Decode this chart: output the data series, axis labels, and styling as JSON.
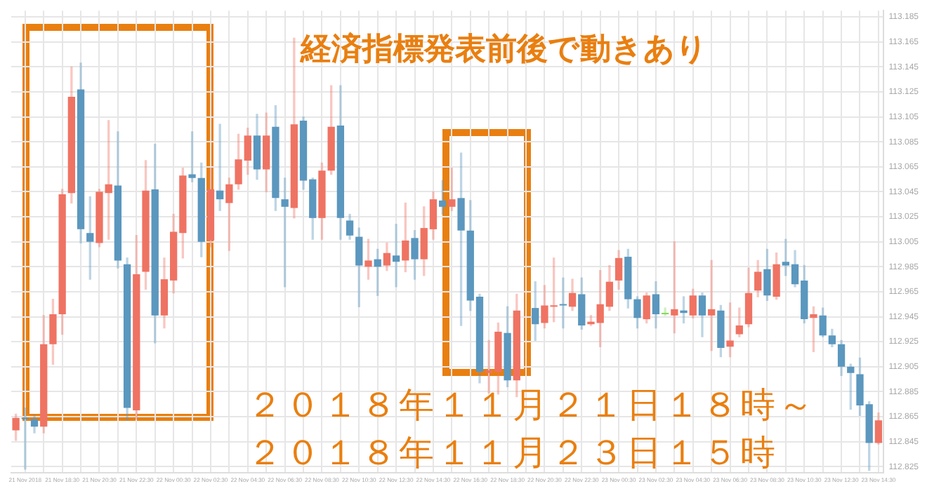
{
  "chart_data": {
    "type": "candlestick",
    "title": "経済指標発表前後で動きあり",
    "annotations": [
      "２０１８年１１月２１日１８時～",
      "２０１８年１１月２３日１５時"
    ],
    "categories": [
      null,
      "21 Nov 2018",
      null,
      null,
      null,
      "21 Nov 18:30",
      null,
      null,
      null,
      "21 Nov 20:30",
      null,
      null,
      null,
      "21 Nov 22:30",
      null,
      null,
      null,
      "22 Nov 00:30",
      null,
      null,
      null,
      "22 Nov 02:30",
      null,
      null,
      null,
      "22 Nov 04:30",
      null,
      null,
      null,
      "22 Nov 06:30",
      null,
      null,
      null,
      "22 Nov 08:30",
      null,
      null,
      null,
      "22 Nov 10:30",
      null,
      null,
      null,
      "22 Nov 12:30",
      null,
      null,
      null,
      "22 Nov 14:30",
      null,
      null,
      null,
      "22 Nov 16:30",
      null,
      null,
      null,
      "22 Nov 18:30",
      null,
      null,
      null,
      "22 Nov 20:30",
      null,
      null,
      null,
      "22 Nov 22:30",
      null,
      null,
      null,
      "23 Nov 00:30",
      null,
      null,
      null,
      "23 Nov 02:30",
      null,
      null,
      null,
      "23 Nov 04:30",
      null,
      null,
      null,
      "23 Nov 06:30",
      null,
      null,
      null,
      "23 Nov 08:30",
      null,
      null,
      null,
      "23 Nov 10:30",
      null,
      null,
      null,
      "23 Nov 12:30",
      null,
      null,
      null,
      "23 Nov 14:30"
    ],
    "ohlc": [
      [
        112.854,
        112.867,
        112.846,
        112.864
      ],
      [
        112.864,
        112.872,
        112.823,
        112.863
      ],
      [
        112.863,
        112.866,
        112.852,
        112.857
      ],
      [
        112.857,
        112.946,
        112.852,
        112.923
      ],
      [
        112.923,
        112.959,
        112.907,
        112.947
      ],
      [
        112.947,
        113.047,
        112.931,
        113.043
      ],
      [
        113.044,
        113.145,
        113.036,
        113.121
      ],
      [
        113.127,
        113.148,
        113.004,
        113.015
      ],
      [
        113.012,
        113.041,
        112.975,
        113.005
      ],
      [
        113.004,
        113.047,
        113.001,
        113.045
      ],
      [
        113.044,
        113.102,
        113.007,
        113.051
      ],
      [
        113.05,
        113.093,
        112.984,
        112.99
      ],
      [
        112.987,
        112.992,
        112.862,
        112.872
      ],
      [
        112.87,
        113.01,
        112.863,
        112.979
      ],
      [
        112.981,
        113.07,
        112.967,
        113.046
      ],
      [
        113.047,
        113.083,
        112.924,
        112.946
      ],
      [
        112.946,
        112.992,
        112.936,
        112.975
      ],
      [
        112.974,
        113.027,
        112.964,
        113.013
      ],
      [
        113.012,
        113.064,
        112.992,
        113.058
      ],
      [
        113.059,
        113.093,
        113.053,
        113.056
      ],
      [
        113.056,
        113.068,
        112.993,
        113.005
      ],
      [
        113.006,
        113.064,
        113.001,
        113.047
      ],
      [
        113.046,
        113.099,
        113.03,
        113.039
      ],
      [
        113.036,
        113.056,
        112.998,
        113.051
      ],
      [
        113.051,
        113.091,
        113.047,
        113.071
      ],
      [
        113.07,
        113.096,
        113.059,
        113.09
      ],
      [
        113.09,
        113.107,
        113.055,
        113.063
      ],
      [
        113.063,
        113.108,
        113.045,
        113.09
      ],
      [
        113.097,
        113.114,
        113.03,
        113.04
      ],
      [
        113.039,
        113.056,
        112.969,
        113.033
      ],
      [
        113.032,
        113.168,
        113.024,
        113.099
      ],
      [
        113.102,
        113.105,
        113.047,
        113.054
      ],
      [
        113.055,
        113.056,
        113.007,
        113.024
      ],
      [
        113.024,
        113.068,
        113.007,
        113.062
      ],
      [
        113.062,
        113.13,
        113.059,
        113.097
      ],
      [
        113.098,
        113.13,
        113.007,
        113.024
      ],
      [
        113.022,
        113.027,
        113.007,
        113.01
      ],
      [
        113.009,
        113.016,
        112.953,
        112.986
      ],
      [
        112.985,
        113.007,
        112.975,
        112.99
      ],
      [
        112.991,
        112.999,
        112.962,
        112.985
      ],
      [
        112.986,
        113.004,
        112.982,
        112.996
      ],
      [
        112.994,
        113.019,
        112.969,
        112.989
      ],
      [
        112.99,
        113.036,
        112.981,
        113.006
      ],
      [
        113.008,
        113.014,
        112.975,
        112.991
      ],
      [
        112.991,
        113.033,
        112.978,
        113.016
      ],
      [
        113.015,
        113.045,
        113.007,
        113.039
      ],
      [
        113.038,
        113.054,
        113.027,
        113.033
      ],
      [
        113.033,
        113.064,
        113.03,
        113.039
      ],
      [
        113.04,
        113.076,
        112.938,
        113.014
      ],
      [
        113.014,
        113.038,
        112.95,
        112.958
      ],
      [
        112.961,
        112.963,
        112.892,
        112.901
      ],
      [
        112.9,
        112.926,
        112.884,
        112.902
      ],
      [
        112.901,
        112.94,
        112.883,
        112.933
      ],
      [
        112.932,
        112.953,
        112.889,
        112.894
      ],
      [
        112.894,
        112.963,
        112.881,
        112.95
      ],
      null,
      [
        112.952,
        112.973,
        112.926,
        112.939
      ],
      [
        112.94,
        112.97,
        112.936,
        112.954
      ],
      [
        112.953,
        112.992,
        112.941,
        112.954
      ],
      [
        112.955,
        112.976,
        112.936,
        112.954
      ],
      [
        112.953,
        112.975,
        112.95,
        112.964
      ],
      [
        112.963,
        112.976,
        112.935,
        112.938
      ],
      [
        112.939,
        112.946,
        112.938,
        112.941
      ],
      [
        112.94,
        112.982,
        112.921,
        112.955
      ],
      [
        112.953,
        112.986,
        112.95,
        112.973
      ],
      [
        112.974,
        112.998,
        112.967,
        112.992
      ],
      [
        112.993,
        112.999,
        112.952,
        112.959
      ],
      [
        112.959,
        112.961,
        112.936,
        112.944
      ],
      [
        112.943,
        112.964,
        112.94,
        112.962
      ],
      [
        112.963,
        112.973,
        112.936,
        112.947
      ],
      [
        112.947,
        112.952,
        112.946,
        112.948
      ],
      [
        112.946,
        113.005,
        112.932,
        112.951
      ],
      [
        112.95,
        112.961,
        112.94,
        112.948
      ],
      [
        112.946,
        112.967,
        112.944,
        112.962
      ],
      [
        112.962,
        112.964,
        112.929,
        112.946
      ],
      [
        112.946,
        112.99,
        112.918,
        112.951
      ],
      [
        112.95,
        112.954,
        112.913,
        112.92
      ],
      [
        112.921,
        112.956,
        112.913,
        112.926
      ],
      [
        112.931,
        112.952,
        112.929,
        112.938
      ],
      [
        112.939,
        112.984,
        112.937,
        112.964
      ],
      [
        112.966,
        112.99,
        112.961,
        112.981
      ],
      [
        112.983,
        112.999,
        112.958,
        112.962
      ],
      [
        112.961,
        112.996,
        112.959,
        112.987
      ],
      [
        112.989,
        113.007,
        112.978,
        112.986
      ],
      [
        112.987,
        112.998,
        112.969,
        112.971
      ],
      [
        112.974,
        112.986,
        112.94,
        112.943
      ],
      [
        112.944,
        112.953,
        112.917,
        112.947
      ],
      [
        112.946,
        112.952,
        112.929,
        112.93
      ],
      [
        112.93,
        112.935,
        112.921,
        112.923
      ],
      [
        112.923,
        112.926,
        112.898,
        112.905
      ],
      [
        112.905,
        112.907,
        112.871,
        112.9
      ],
      [
        112.899,
        112.912,
        112.866,
        112.874
      ],
      [
        112.875,
        112.877,
        112.822,
        112.844
      ],
      [
        112.844,
        112.868,
        112.843,
        112.862
      ]
    ],
    "colors": [
      "#ef7363",
      "#5b97be",
      "#5b97be",
      "#ef7363",
      "#ef7363",
      "#ef7363",
      "#ef7363",
      "#5b97be",
      "#5b97be",
      "#ef7363",
      "#ef7363",
      "#5b97be",
      "#5b97be",
      "#ef7363",
      "#ef7363",
      "#5b97be",
      "#ef7363",
      "#ef7363",
      "#ef7363",
      "#5b97be",
      "#5b97be",
      "#ef7363",
      "#5b97be",
      "#ef7363",
      "#ef7363",
      "#ef7363",
      "#5b97be",
      "#ef7363",
      "#5b97be",
      "#5b97be",
      "#ef7363",
      "#5b97be",
      "#5b97be",
      "#ef7363",
      "#ef7363",
      "#5b97be",
      "#5b97be",
      "#5b97be",
      "#ef7363",
      "#5b97be",
      "#ef7363",
      "#5b97be",
      "#ef7363",
      "#5b97be",
      "#ef7363",
      "#ef7363",
      "#5b97be",
      "#ef7363",
      "#5b97be",
      "#5b97be",
      "#5b97be",
      "#ef7363",
      "#ef7363",
      "#5b97be",
      "#ef7363",
      null,
      "#5b97be",
      "#ef7363",
      "#ef7363",
      "#5b97be",
      "#ef7363",
      "#5b97be",
      "#ef7363",
      "#ef7363",
      "#ef7363",
      "#ef7363",
      "#5b97be",
      "#5b97be",
      "#ef7363",
      "#5b97be",
      "#84d95e",
      "#ef7363",
      "#5b97be",
      "#ef7363",
      "#5b97be",
      "#ef7363",
      "#5b97be",
      "#ef7363",
      "#ef7363",
      "#ef7363",
      "#ef7363",
      "#5b97be",
      "#ef7363",
      "#5b97be",
      "#5b97be",
      "#5b97be",
      "#ef7363",
      "#5b97be",
      "#5b97be",
      "#5b97be",
      "#5b97be",
      "#5b97be",
      "#5b97be",
      "#ef7363"
    ],
    "ylim": [
      112.82,
      113.19
    ],
    "yticks": [
      112.825,
      112.845,
      112.865,
      112.885,
      112.905,
      112.925,
      112.945,
      112.965,
      112.985,
      113.005,
      113.025,
      113.045,
      113.065,
      113.085,
      113.105,
      113.125,
      113.145,
      113.165,
      113.185
    ],
    "grid": true
  }
}
